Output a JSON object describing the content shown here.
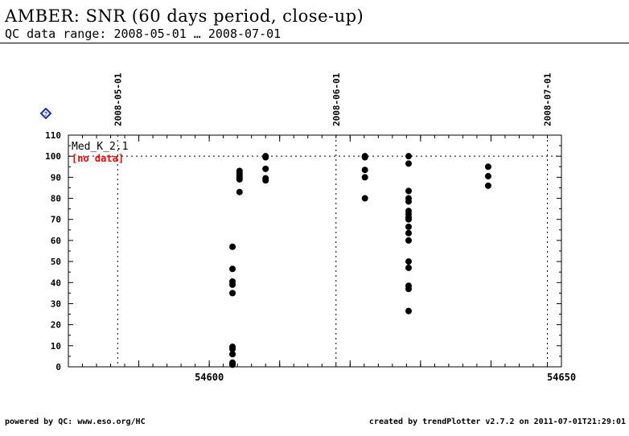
{
  "header": {
    "title": "AMBER: SNR (60 days period, close-up)",
    "subtitle": "QC data range: 2008-05-01 … 2008-07-01"
  },
  "footer": {
    "left": "powered by QC: www.eso.org/HC",
    "right": "created by trendPlotter v2.7.2 on 2011-07-01T21:29:01"
  },
  "help_icon": "question-diamond-icon",
  "chart_data": {
    "type": "scatter",
    "xlim": [
      54580,
      54650
    ],
    "ylim": [
      0,
      110
    ],
    "x_ticks": [
      54600,
      54650
    ],
    "y_ticks": [
      0,
      10,
      20,
      30,
      40,
      50,
      60,
      70,
      80,
      90,
      100,
      110
    ],
    "reference_line_y": 100,
    "date_markers": [
      {
        "x": 54587,
        "label": "2008-05-01"
      },
      {
        "x": 54618,
        "label": "2008-06-01"
      },
      {
        "x": 54648,
        "label": "2008-07-01"
      }
    ],
    "annotations": {
      "series_label": "Med_K_2.1",
      "status": "[no data]",
      "status_color": "#ff0000"
    },
    "colors": {
      "points": "#000000"
    },
    "series": [
      {
        "points": [
          [
            54603.3,
            57
          ],
          [
            54603.3,
            46.5
          ],
          [
            54603.3,
            40.5
          ],
          [
            54603.3,
            39
          ],
          [
            54603.3,
            35
          ],
          [
            54603.3,
            9.5
          ],
          [
            54603.3,
            8.5
          ],
          [
            54603.3,
            6
          ],
          [
            54603.3,
            2
          ],
          [
            54603.3,
            1.5
          ],
          [
            54603.3,
            1
          ],
          [
            54604.3,
            93
          ],
          [
            54604.3,
            92
          ],
          [
            54604.3,
            91
          ],
          [
            54604.3,
            90
          ],
          [
            54604.3,
            89
          ],
          [
            54604.3,
            83
          ],
          [
            54608,
            100
          ],
          [
            54608,
            99.5
          ],
          [
            54608,
            94
          ],
          [
            54608,
            89.5
          ],
          [
            54608,
            88.5
          ],
          [
            54622.1,
            100
          ],
          [
            54622.1,
            99.5
          ],
          [
            54622.1,
            93.5
          ],
          [
            54622.1,
            90
          ],
          [
            54622.1,
            80
          ],
          [
            54628.3,
            100
          ],
          [
            54628.3,
            96.5
          ],
          [
            54628.3,
            83.5
          ],
          [
            54628.3,
            80
          ],
          [
            54628.3,
            78.5
          ],
          [
            54628.3,
            74
          ],
          [
            54628.3,
            72.5
          ],
          [
            54628.3,
            71
          ],
          [
            54628.3,
            70
          ],
          [
            54628.3,
            66.5
          ],
          [
            54628.3,
            63.5
          ],
          [
            54628.3,
            60
          ],
          [
            54628.3,
            50
          ],
          [
            54628.3,
            47
          ],
          [
            54628.3,
            38.5
          ],
          [
            54628.3,
            37
          ],
          [
            54628.3,
            26.5
          ],
          [
            54639.6,
            95
          ],
          [
            54639.6,
            90.5
          ],
          [
            54639.6,
            86
          ]
        ]
      }
    ]
  }
}
